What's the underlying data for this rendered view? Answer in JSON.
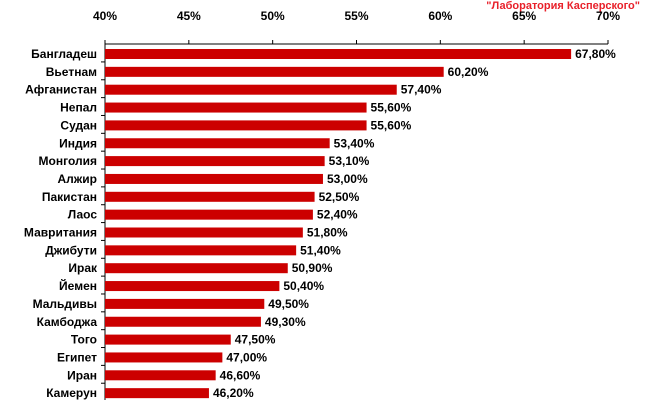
{
  "credit": "\"Лаборатория Касперского\"",
  "colors": {
    "bar": "#cc0000",
    "axis": "#000000"
  },
  "chart_data": {
    "type": "bar",
    "orientation": "horizontal",
    "title": "",
    "xlabel": "",
    "ylabel": "",
    "xlim": [
      40,
      70
    ],
    "x_ticks": [
      40,
      45,
      50,
      55,
      60,
      65,
      70
    ],
    "x_tick_labels": [
      "40%",
      "45%",
      "50%",
      "55%",
      "60%",
      "65%",
      "70%"
    ],
    "x_axis_position": "top",
    "grid": false,
    "categories": [
      "Бангладеш",
      "Вьетнам",
      "Афганистан",
      "Непал",
      "Судан",
      "Индия",
      "Монголия",
      "Алжир",
      "Пакистан",
      "Лаос",
      "Мавритания",
      "Джибути",
      "Ирак",
      "Йемен",
      "Мальдивы",
      "Камбоджа",
      "Того",
      "Египет",
      "Иран",
      "Камерун"
    ],
    "values": [
      67.8,
      60.2,
      57.4,
      55.6,
      55.6,
      53.4,
      53.1,
      53.0,
      52.5,
      52.4,
      51.8,
      51.4,
      50.9,
      50.4,
      49.5,
      49.3,
      47.5,
      47.0,
      46.6,
      46.2
    ],
    "value_labels": [
      "67,80%",
      "60,20%",
      "57,40%",
      "55,60%",
      "55,60%",
      "53,40%",
      "53,10%",
      "53,00%",
      "52,50%",
      "52,40%",
      "51,80%",
      "51,40%",
      "50,90%",
      "50,40%",
      "49,50%",
      "49,30%",
      "47,50%",
      "47,00%",
      "46,60%",
      "46,20%"
    ]
  }
}
